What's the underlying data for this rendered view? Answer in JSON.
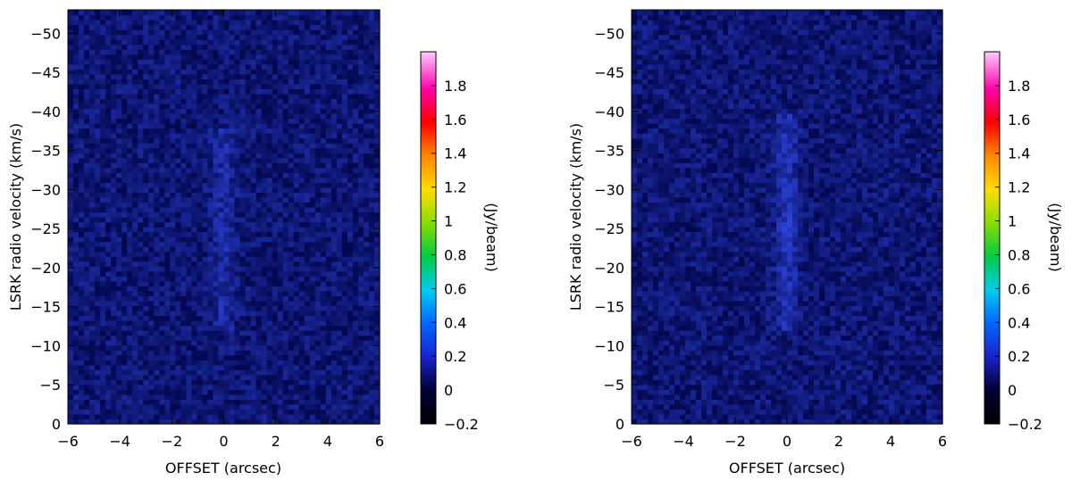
{
  "chart_data": [
    {
      "type": "heatmap",
      "title": "",
      "xlabel": "OFFSET (arcsec)",
      "ylabel": "LSRK radio velocity  (km/s)",
      "xlim": [
        -6,
        6
      ],
      "ylim": [
        0,
        -53
      ],
      "x_ticks": [
        -6,
        -4,
        -2,
        0,
        2,
        4,
        6
      ],
      "y_ticks": [
        0,
        -5,
        -10,
        -15,
        -20,
        -25,
        -30,
        -35,
        -40,
        -45,
        -50
      ],
      "colorbar": {
        "label": "(Jy/beam)",
        "range": [
          -0.2,
          2.0
        ],
        "ticks": [
          -0.2,
          0,
          0.2,
          0.4,
          0.6,
          0.8,
          1,
          1.2,
          1.4,
          1.6,
          1.8
        ]
      },
      "emission": {
        "center_offset_arcsec": 0.0,
        "velocity_range_kms": [
          -38,
          -12
        ],
        "peak_jy_per_beam": 0.33
      }
    },
    {
      "type": "heatmap",
      "title": "",
      "xlabel": "OFFSET (arcsec)",
      "ylabel": "LSRK radio velocity  (km/s)",
      "xlim": [
        -6,
        6
      ],
      "ylim": [
        0,
        -53
      ],
      "x_ticks": [
        -6,
        -4,
        -2,
        0,
        2,
        4,
        6
      ],
      "y_ticks": [
        0,
        -5,
        -10,
        -15,
        -20,
        -25,
        -30,
        -35,
        -40,
        -45,
        -50
      ],
      "colorbar": {
        "label": "(Jy/beam)",
        "range": [
          -0.2,
          2.0
        ],
        "ticks": [
          -0.2,
          0,
          0.2,
          0.4,
          0.6,
          0.8,
          1,
          1.2,
          1.4,
          1.6,
          1.8
        ]
      },
      "emission": {
        "center_offset_arcsec": 0.0,
        "velocity_range_kms": [
          -40,
          -12
        ],
        "peak_jy_per_beam": 0.45,
        "peak_velocity_kms": -24.5
      }
    }
  ]
}
